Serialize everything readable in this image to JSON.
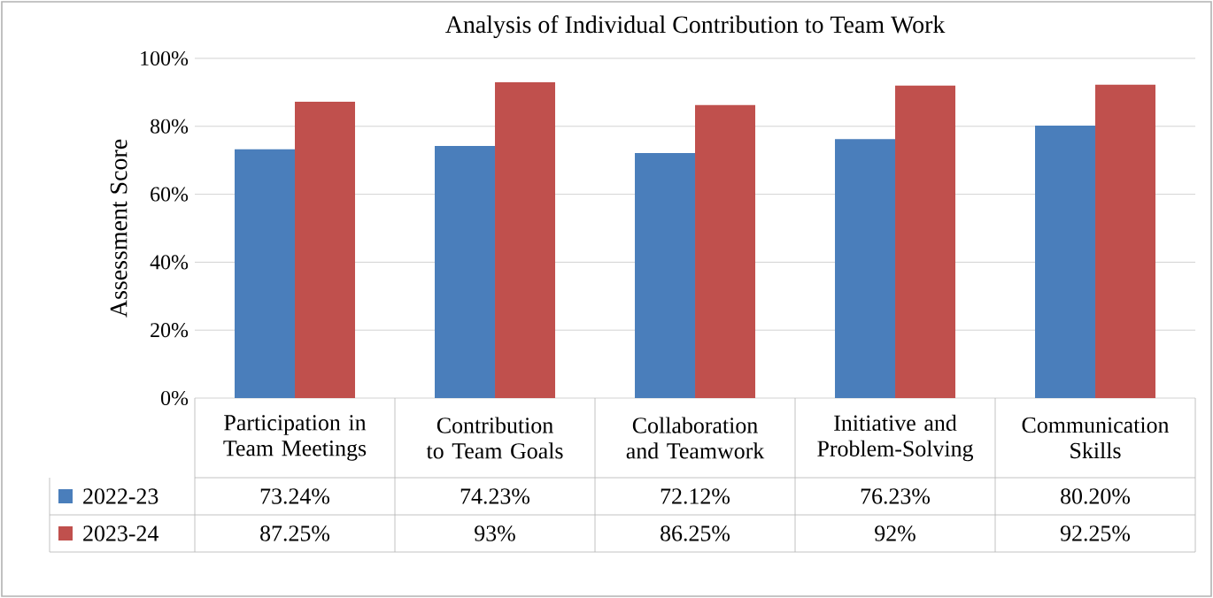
{
  "chart_data": {
    "type": "bar",
    "title": "Analysis of Individual Contribution to Team Work",
    "ylabel": "Assessment Score",
    "categories": [
      "Participation in Team Meetings",
      "Contribution to Team Goals",
      "Collaboration and Teamwork",
      "Initiative and Problem-Solving",
      "Communication Skills"
    ],
    "series": [
      {
        "name": "2022-23",
        "color": "#4a7ebb",
        "values": [
          73.24,
          74.23,
          72.12,
          76.23,
          80.2
        ],
        "value_labels": [
          "73.24%",
          "74.23%",
          "72.12%",
          "76.23%",
          "80.20%"
        ]
      },
      {
        "name": "2023-24",
        "color": "#c0504d",
        "values": [
          87.25,
          93,
          86.25,
          92,
          92.25
        ],
        "value_labels": [
          "87.25%",
          "93%",
          "86.25%",
          "92%",
          "92.25%"
        ]
      }
    ],
    "ylim": [
      0,
      100
    ],
    "yticks": [
      {
        "value": 0,
        "label": "0%"
      },
      {
        "value": 20,
        "label": "20%"
      },
      {
        "value": 40,
        "label": "40%"
      },
      {
        "value": 60,
        "label": "60%"
      },
      {
        "value": 80,
        "label": "80%"
      },
      {
        "value": 100,
        "label": "100%"
      }
    ],
    "grid": "y",
    "legend": "bottom left"
  }
}
